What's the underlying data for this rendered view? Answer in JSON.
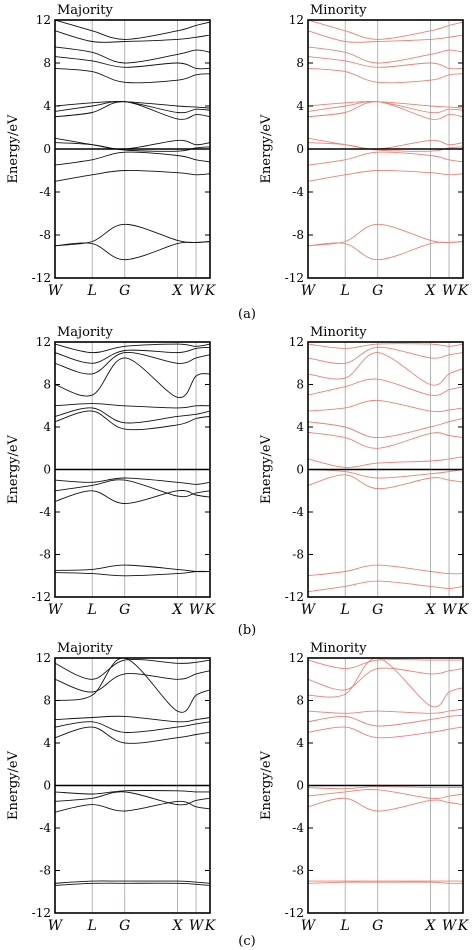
{
  "chart_data": [
    {
      "type": "line",
      "panel": "(a)",
      "title": "Majority",
      "ylabel": "Energy/eV",
      "ylim": [
        -12,
        12
      ],
      "yticks": [
        "12",
        "8",
        "4",
        "0",
        "-4",
        "-8",
        "-12"
      ],
      "kpoints": [
        "W",
        "L",
        "G",
        "X",
        "W",
        "K"
      ],
      "kpos": [
        0,
        0.24,
        0.45,
        0.79,
        0.91,
        1.0
      ],
      "color": "#111111",
      "series": [
        {
          "values": [
            -9.0,
            -8.6,
            -7.0,
            -8.5,
            -8.7,
            -8.6
          ]
        },
        {
          "values": [
            -9.0,
            -8.8,
            -10.3,
            -8.8,
            -8.7,
            -8.6
          ]
        },
        {
          "values": [
            -3.0,
            -2.4,
            -2.0,
            -2.2,
            -2.4,
            -2.3
          ]
        },
        {
          "values": [
            -1.5,
            -1.0,
            -0.3,
            -0.6,
            -1.0,
            -1.2
          ]
        },
        {
          "values": [
            0.6,
            0.4,
            -0.1,
            -0.2,
            0.1,
            0.2
          ]
        },
        {
          "values": [
            1.0,
            0.4,
            0.0,
            0.8,
            0.4,
            0.6
          ]
        },
        {
          "values": [
            3.0,
            3.4,
            4.4,
            2.8,
            3.2,
            3.0
          ]
        },
        {
          "values": [
            3.5,
            4.0,
            4.4,
            3.4,
            3.7,
            3.6
          ]
        },
        {
          "values": [
            4.0,
            4.3,
            4.4,
            4.0,
            3.9,
            3.8
          ]
        },
        {
          "values": [
            7.5,
            7.2,
            6.2,
            6.4,
            6.9,
            7.0
          ]
        },
        {
          "values": [
            8.6,
            8.2,
            7.6,
            8.0,
            7.5,
            7.5
          ]
        },
        {
          "values": [
            9.5,
            9.0,
            8.0,
            8.8,
            9.2,
            9.0
          ]
        },
        {
          "values": [
            11.0,
            10.0,
            10.0,
            10.2,
            10.4,
            10.6
          ]
        },
        {
          "values": [
            12.0,
            11.0,
            10.2,
            11.0,
            11.5,
            11.8
          ]
        }
      ]
    },
    {
      "type": "line",
      "panel": "(a)",
      "title": "Minority",
      "ylabel": "Energy/eV",
      "ylim": [
        -12,
        12
      ],
      "yticks": [
        "12",
        "8",
        "4",
        "0",
        "-4",
        "-8",
        "-12"
      ],
      "kpoints": [
        "W",
        "L",
        "G",
        "X",
        "W",
        "K"
      ],
      "kpos": [
        0,
        0.24,
        0.45,
        0.79,
        0.91,
        1.0
      ],
      "color": "#f08070",
      "series": [
        {
          "values": [
            -9.0,
            -8.6,
            -7.0,
            -8.5,
            -8.7,
            -8.6
          ]
        },
        {
          "values": [
            -9.0,
            -8.8,
            -10.3,
            -8.8,
            -8.7,
            -8.6
          ]
        },
        {
          "values": [
            -3.0,
            -2.4,
            -2.0,
            -2.2,
            -2.4,
            -2.3
          ]
        },
        {
          "values": [
            -1.5,
            -1.0,
            -0.3,
            -0.6,
            -1.0,
            -1.2
          ]
        },
        {
          "values": [
            0.6,
            0.4,
            -0.1,
            -0.2,
            0.1,
            0.2
          ]
        },
        {
          "values": [
            1.0,
            0.4,
            0.0,
            0.8,
            0.4,
            0.6
          ]
        },
        {
          "values": [
            3.0,
            3.4,
            4.4,
            2.8,
            3.2,
            3.0
          ]
        },
        {
          "values": [
            3.5,
            4.0,
            4.4,
            3.4,
            3.7,
            3.6
          ]
        },
        {
          "values": [
            4.0,
            4.3,
            4.4,
            4.0,
            3.9,
            3.8
          ]
        },
        {
          "values": [
            7.5,
            7.2,
            6.2,
            6.4,
            6.9,
            7.0
          ]
        },
        {
          "values": [
            8.6,
            8.2,
            7.6,
            8.0,
            7.5,
            7.5
          ]
        },
        {
          "values": [
            9.5,
            9.0,
            8.0,
            8.8,
            9.2,
            9.0
          ]
        },
        {
          "values": [
            11.0,
            10.0,
            10.0,
            10.2,
            10.4,
            10.6
          ]
        },
        {
          "values": [
            12.0,
            11.0,
            10.2,
            11.0,
            11.5,
            11.8
          ]
        }
      ]
    },
    {
      "type": "line",
      "panel": "(b)",
      "title": "Majority",
      "ylabel": "Energy/eV",
      "ylim": [
        -12,
        12
      ],
      "yticks": [
        "12",
        "8",
        "4",
        "0",
        "-4",
        "-8",
        "-12"
      ],
      "kpoints": [
        "W",
        "L",
        "G",
        "X",
        "W",
        "K"
      ],
      "kpos": [
        0,
        0.24,
        0.45,
        0.79,
        0.91,
        1.0
      ],
      "color": "#111111",
      "series": [
        {
          "values": [
            -9.7,
            -9.8,
            -10.0,
            -9.8,
            -9.6,
            -9.6
          ]
        },
        {
          "values": [
            -9.5,
            -9.4,
            -9.0,
            -9.4,
            -9.6,
            -9.6
          ]
        },
        {
          "values": [
            -3.0,
            -2.0,
            -3.2,
            -2.0,
            -2.4,
            -2.6
          ]
        },
        {
          "values": [
            -2.0,
            -1.5,
            -1.0,
            -2.5,
            -2.2,
            -2.0
          ]
        },
        {
          "values": [
            -1.0,
            -1.2,
            -0.8,
            -1.2,
            -1.4,
            -1.2
          ]
        },
        {
          "values": [
            4.5,
            5.5,
            3.8,
            4.2,
            4.8,
            5.0
          ]
        },
        {
          "values": [
            5.0,
            5.8,
            4.4,
            5.0,
            5.2,
            5.5
          ]
        },
        {
          "values": [
            6.0,
            6.2,
            6.0,
            5.8,
            6.0,
            6.0
          ]
        },
        {
          "values": [
            8.0,
            7.0,
            10.5,
            6.8,
            8.8,
            9.0
          ]
        },
        {
          "values": [
            10.0,
            9.0,
            11.0,
            10.0,
            10.5,
            10.8
          ]
        },
        {
          "values": [
            11.0,
            10.0,
            11.2,
            11.0,
            11.4,
            11.5
          ]
        },
        {
          "values": [
            11.8,
            11.0,
            11.6,
            11.8,
            11.6,
            11.8
          ]
        }
      ]
    },
    {
      "type": "line",
      "panel": "(b)",
      "title": "Minority",
      "ylabel": "Energy/eV",
      "ylim": [
        -12,
        12
      ],
      "yticks": [
        "12",
        "8",
        "4",
        "0",
        "-4",
        "-8",
        "-12"
      ],
      "kpoints": [
        "W",
        "L",
        "G",
        "X",
        "W",
        "K"
      ],
      "kpos": [
        0,
        0.24,
        0.45,
        0.79,
        0.91,
        1.0
      ],
      "color": "#f08070",
      "series": [
        {
          "values": [
            -11.5,
            -11.0,
            -10.5,
            -11.0,
            -11.2,
            -11.0
          ]
        },
        {
          "values": [
            -10.0,
            -9.6,
            -9.0,
            -9.6,
            -9.8,
            -9.8
          ]
        },
        {
          "values": [
            -1.5,
            -0.5,
            -1.8,
            -0.8,
            -1.0,
            -1.2
          ]
        },
        {
          "values": [
            0.0,
            -0.2,
            -0.8,
            -0.4,
            -0.2,
            0.0
          ]
        },
        {
          "values": [
            1.0,
            0.2,
            0.6,
            0.8,
            1.0,
            1.2
          ]
        },
        {
          "values": [
            3.5,
            3.0,
            2.0,
            3.4,
            3.2,
            3.0
          ]
        },
        {
          "values": [
            4.5,
            4.0,
            3.0,
            4.0,
            4.5,
            4.8
          ]
        },
        {
          "values": [
            5.5,
            5.8,
            6.5,
            5.5,
            5.6,
            5.8
          ]
        },
        {
          "values": [
            7.0,
            7.8,
            8.5,
            7.0,
            7.5,
            7.8
          ]
        },
        {
          "values": [
            9.0,
            8.6,
            11.0,
            8.0,
            9.0,
            9.5
          ]
        },
        {
          "values": [
            10.5,
            10.0,
            11.5,
            10.5,
            10.8,
            11.0
          ]
        },
        {
          "values": [
            11.8,
            11.4,
            11.8,
            11.8,
            11.6,
            11.8
          ]
        }
      ]
    },
    {
      "type": "line",
      "panel": "(c)",
      "title": "Majority",
      "ylabel": "Energy/eV",
      "ylim": [
        -12,
        12
      ],
      "yticks": [
        "12",
        "8",
        "4",
        "0",
        "-4",
        "-8",
        "-12"
      ],
      "kpoints": [
        "W",
        "L",
        "G",
        "X",
        "W",
        "K"
      ],
      "kpos": [
        0,
        0.24,
        0.45,
        0.79,
        0.91,
        1.0
      ],
      "color": "#111111",
      "series": [
        {
          "values": [
            -9.2,
            -9.0,
            -9.0,
            -9.0,
            -9.1,
            -9.2
          ]
        },
        {
          "values": [
            -9.4,
            -9.2,
            -9.2,
            -9.2,
            -9.3,
            -9.4
          ]
        },
        {
          "values": [
            -2.5,
            -1.8,
            -2.4,
            -1.5,
            -2.0,
            -2.2
          ]
        },
        {
          "values": [
            -1.5,
            -1.2,
            -0.6,
            -1.8,
            -1.4,
            -1.2
          ]
        },
        {
          "values": [
            -0.6,
            -0.8,
            -0.5,
            -0.5,
            -0.6,
            -0.6
          ]
        },
        {
          "values": [
            4.5,
            5.5,
            4.0,
            4.5,
            4.8,
            5.0
          ]
        },
        {
          "values": [
            5.5,
            6.0,
            5.0,
            5.5,
            5.8,
            6.0
          ]
        },
        {
          "values": [
            6.2,
            6.4,
            6.5,
            6.0,
            6.2,
            6.4
          ]
        },
        {
          "values": [
            8.0,
            8.5,
            12.0,
            7.0,
            8.5,
            9.0
          ]
        },
        {
          "values": [
            10.0,
            8.8,
            10.5,
            10.0,
            10.5,
            10.8
          ]
        },
        {
          "values": [
            11.5,
            10.0,
            11.8,
            11.5,
            11.6,
            11.8
          ]
        }
      ]
    },
    {
      "type": "line",
      "panel": "(c)",
      "title": "Minority",
      "ylabel": "Energy/eV",
      "ylim": [
        -12,
        12
      ],
      "yticks": [
        "12",
        "8",
        "4",
        "0",
        "-4",
        "-8",
        "-12"
      ],
      "kpoints": [
        "W",
        "L",
        "G",
        "X",
        "W",
        "K"
      ],
      "kpos": [
        0,
        0.24,
        0.45,
        0.79,
        0.91,
        1.0
      ],
      "color": "#f08070",
      "series": [
        {
          "values": [
            -9.0,
            -9.0,
            -9.0,
            -9.0,
            -9.0,
            -9.0
          ]
        },
        {
          "values": [
            -9.2,
            -9.1,
            -9.1,
            -9.1,
            -9.2,
            -9.2
          ]
        },
        {
          "values": [
            -2.0,
            -1.2,
            -2.4,
            -1.4,
            -1.6,
            -1.8
          ]
        },
        {
          "values": [
            -1.0,
            -0.6,
            -0.4,
            -1.2,
            -1.0,
            -0.8
          ]
        },
        {
          "values": [
            -0.2,
            -0.3,
            -0.1,
            -0.2,
            -0.2,
            -0.2
          ]
        },
        {
          "values": [
            5.0,
            5.5,
            4.5,
            5.0,
            5.3,
            5.5
          ]
        },
        {
          "values": [
            6.0,
            6.5,
            5.6,
            6.2,
            6.5,
            6.6
          ]
        },
        {
          "values": [
            7.0,
            6.8,
            7.0,
            6.8,
            7.0,
            7.2
          ]
        },
        {
          "values": [
            8.5,
            8.6,
            12.0,
            7.5,
            8.8,
            9.2
          ]
        },
        {
          "values": [
            10.0,
            9.0,
            11.0,
            10.5,
            10.8,
            11.0
          ]
        },
        {
          "values": [
            11.8,
            11.0,
            11.8,
            11.8,
            11.8,
            11.8
          ]
        }
      ]
    }
  ],
  "captions": [
    "(a)",
    "(b)",
    "(c)"
  ]
}
